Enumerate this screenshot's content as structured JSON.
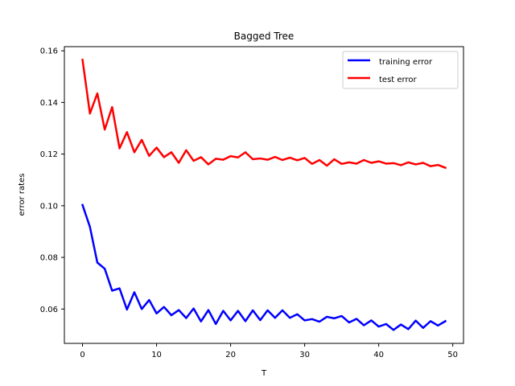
{
  "chart_data": {
    "type": "line",
    "title": "Bagged Tree",
    "xlabel": "T",
    "ylabel": "error rates",
    "xlim": [
      -2.45,
      51.45
    ],
    "ylim": [
      0.0467,
      0.1616
    ],
    "x_ticks": [
      0,
      10,
      20,
      30,
      40,
      50
    ],
    "y_ticks": [
      0.06,
      0.08,
      0.1,
      0.12,
      0.14,
      0.16
    ],
    "x_tick_labels": [
      "0",
      "10",
      "20",
      "30",
      "40",
      "50"
    ],
    "y_tick_labels": [
      "0.06",
      "0.08",
      "0.10",
      "0.12",
      "0.14",
      "0.16"
    ],
    "grid": false,
    "legend_position": "top-right",
    "x": [
      0,
      1,
      2,
      3,
      4,
      5,
      6,
      7,
      8,
      9,
      10,
      11,
      12,
      13,
      14,
      15,
      16,
      17,
      18,
      19,
      20,
      21,
      22,
      23,
      24,
      25,
      26,
      27,
      28,
      29,
      30,
      31,
      32,
      33,
      34,
      35,
      36,
      37,
      38,
      39,
      40,
      41,
      42,
      43,
      44,
      45,
      46,
      47,
      48,
      49
    ],
    "series": [
      {
        "name": "training error",
        "color": "#0000ff",
        "values": [
          0.1003,
          0.0918,
          0.078,
          0.0756,
          0.0671,
          0.068,
          0.0598,
          0.0665,
          0.06,
          0.0635,
          0.0583,
          0.0608,
          0.0576,
          0.0596,
          0.0565,
          0.0602,
          0.0552,
          0.0596,
          0.0542,
          0.0593,
          0.0556,
          0.0593,
          0.0553,
          0.0595,
          0.0557,
          0.0595,
          0.0566,
          0.0595,
          0.0566,
          0.058,
          0.0556,
          0.0561,
          0.0551,
          0.057,
          0.0564,
          0.0573,
          0.0548,
          0.0562,
          0.0537,
          0.0556,
          0.0532,
          0.0542,
          0.0519,
          0.054,
          0.0522,
          0.0555,
          0.0527,
          0.0553,
          0.0536,
          0.0553
        ]
      },
      {
        "name": "test error",
        "color": "#ff0000",
        "values": [
          0.1565,
          0.1357,
          0.1435,
          0.1295,
          0.1382,
          0.1222,
          0.1285,
          0.1207,
          0.1255,
          0.1193,
          0.1225,
          0.1188,
          0.1207,
          0.1166,
          0.1215,
          0.1174,
          0.1188,
          0.116,
          0.1182,
          0.1178,
          0.1192,
          0.1187,
          0.1207,
          0.118,
          0.1183,
          0.1178,
          0.1189,
          0.1177,
          0.1186,
          0.1176,
          0.1185,
          0.1162,
          0.1177,
          0.1155,
          0.118,
          0.1162,
          0.1168,
          0.1163,
          0.1177,
          0.1166,
          0.1172,
          0.1163,
          0.1165,
          0.1157,
          0.1168,
          0.116,
          0.1166,
          0.1153,
          0.1158,
          0.1147
        ]
      }
    ]
  }
}
